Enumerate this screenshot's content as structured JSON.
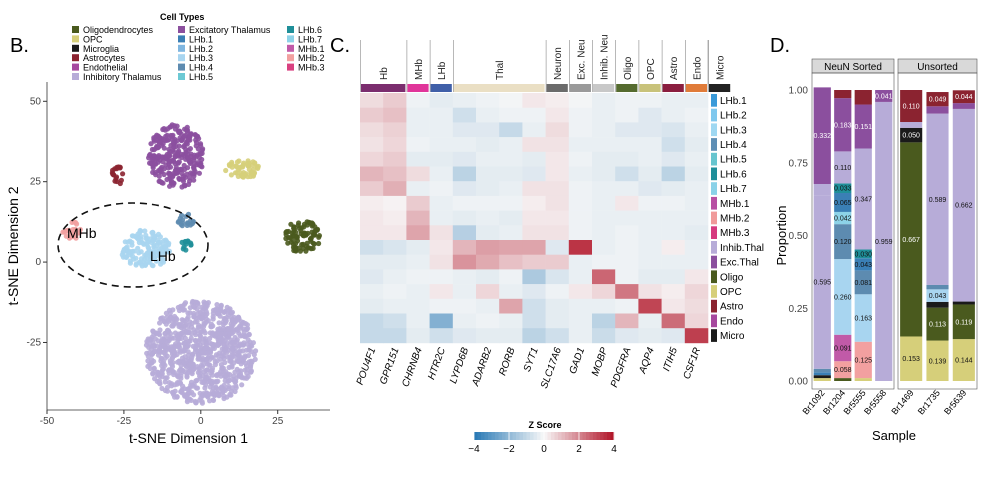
{
  "panels": {
    "B": {
      "label": "B.",
      "legend_title": "Cell Types",
      "legend": [
        {
          "name": "Oligodendrocytes",
          "color": "#4a5a1e"
        },
        {
          "name": "OPC",
          "color": "#d6cf7a"
        },
        {
          "name": "Microglia",
          "color": "#1a1a1a"
        },
        {
          "name": "Astrocytes",
          "color": "#8b2330"
        },
        {
          "name": "Endothelial",
          "color": "#a6489e"
        },
        {
          "name": "Inhibitory Thalamus",
          "color": "#b7acd8"
        },
        {
          "name": "Excitatory Thalamus",
          "color": "#8b4f9e"
        },
        {
          "name": "LHb.1",
          "color": "#3a7fb5"
        },
        {
          "name": "LHb.2",
          "color": "#7fb6e0"
        },
        {
          "name": "LHb.3",
          "color": "#a8d5f0"
        },
        {
          "name": "LHb.4",
          "color": "#5d8bb0"
        },
        {
          "name": "LHb.5",
          "color": "#6cc9d4"
        },
        {
          "name": "LHb.6",
          "color": "#1f8f99"
        },
        {
          "name": "LHb.7",
          "color": "#8dd3e8"
        },
        {
          "name": "MHb.1",
          "color": "#c15aa8"
        },
        {
          "name": "MHb.2",
          "color": "#f2a0a0"
        },
        {
          "name": "MHb.3",
          "color": "#d94080"
        }
      ],
      "annotations": [
        "MHb",
        "LHb"
      ]
    },
    "C": {
      "label": "C.",
      "colorbar_title": "Z Score",
      "colorbar_ticks": [
        "−4",
        "−2",
        "0",
        "2",
        "4"
      ]
    },
    "D": {
      "label": "D."
    }
  },
  "chart_data": [
    {
      "type": "scatter",
      "xlabel": "t-SNE Dimension 1",
      "ylabel": "t-SNE Dimension 2",
      "xlim": [
        -50,
        42
      ],
      "ylim": [
        -46,
        56
      ],
      "xticks": [
        -50,
        -25,
        0,
        25
      ],
      "yticks": [
        -25,
        0,
        25,
        50
      ],
      "clusters": [
        {
          "name": "Inhibitory Thalamus",
          "center": [
            0,
            -28
          ],
          "spread": [
            18,
            16
          ]
        },
        {
          "name": "Excitatory Thalamus",
          "center": [
            -8,
            33
          ],
          "spread": [
            9,
            10
          ]
        },
        {
          "name": "Oligodendrocytes",
          "center": [
            33,
            8
          ],
          "spread": [
            6,
            5
          ]
        },
        {
          "name": "OPC",
          "center": [
            14,
            29
          ],
          "spread": [
            6,
            3
          ]
        },
        {
          "name": "Astrocytes",
          "center": [
            -27,
            27
          ],
          "spread": [
            2,
            3
          ]
        },
        {
          "name": "LHb.3",
          "center": [
            -18,
            4
          ],
          "spread": [
            8,
            6
          ]
        },
        {
          "name": "LHb.4",
          "center": [
            -5,
            13
          ],
          "spread": [
            3,
            2
          ]
        },
        {
          "name": "LHb.6",
          "center": [
            -5,
            5
          ],
          "spread": [
            2,
            2
          ]
        },
        {
          "name": "MHb.2",
          "center": [
            -42,
            10
          ],
          "spread": [
            3,
            3
          ]
        }
      ]
    },
    {
      "type": "heatmap",
      "column_groups": [
        {
          "name": "Hb",
          "span": 2,
          "color": "#7b2d6e"
        },
        {
          "name": "MHb",
          "span": 1,
          "color": "#e0359a"
        },
        {
          "name": "LHb",
          "span": 1,
          "color": "#3f5fa8"
        },
        {
          "name": "Thal",
          "span": 4,
          "color": "#eadfc4"
        },
        {
          "name": "Neuron",
          "span": 1,
          "color": "#6b6b6b"
        },
        {
          "name": "Exc. Neu",
          "span": 1,
          "color": "#9a9a9a"
        },
        {
          "name": "Inhib. Neu",
          "span": 1,
          "color": "#c8c8c8"
        },
        {
          "name": "Oligo",
          "span": 1,
          "color": "#556b2f"
        },
        {
          "name": "OPC",
          "span": 1,
          "color": "#c8c27a"
        },
        {
          "name": "Astro",
          "span": 1,
          "color": "#8b1e3f"
        },
        {
          "name": "Endo",
          "span": 1,
          "color": "#e07b39"
        },
        {
          "name": "Micro",
          "span": 1,
          "color": "#222222"
        }
      ],
      "genes": [
        "POU4F1",
        "GPR151",
        "CHRNB4",
        "HTR2C",
        "LYPD6B",
        "ADARB2",
        "RORB",
        "SYT1",
        "SLC17A6",
        "GAD1",
        "MOBP",
        "PDGFRA",
        "AQP4",
        "ITIH5",
        "CSF1R"
      ],
      "rows": [
        {
          "name": "LHb.1",
          "color": "#3a9ad9"
        },
        {
          "name": "LHb.2",
          "color": "#7fc8ee"
        },
        {
          "name": "LHb.3",
          "color": "#9fd8f2"
        },
        {
          "name": "LHb.4",
          "color": "#5e8fb5"
        },
        {
          "name": "LHb.5",
          "color": "#67c5cf"
        },
        {
          "name": "LHb.6",
          "color": "#1f8f9a"
        },
        {
          "name": "LHb.7",
          "color": "#8ad2e8"
        },
        {
          "name": "MHb.1",
          "color": "#b84fa3"
        },
        {
          "name": "MHb.2",
          "color": "#f09a9a"
        },
        {
          "name": "MHb.3",
          "color": "#d63a7f"
        },
        {
          "name": "Inhib.Thal",
          "color": "#b7acd8"
        },
        {
          "name": "Exc.Thal",
          "color": "#8b4f9e"
        },
        {
          "name": "Oligo",
          "color": "#4a5a1e"
        },
        {
          "name": "OPC",
          "color": "#d6cf7a"
        },
        {
          "name": "Astro",
          "color": "#8b2330"
        },
        {
          "name": "Endo",
          "color": "#a6489e"
        },
        {
          "name": "Micro",
          "color": "#1a1a1a"
        }
      ],
      "values": [
        [
          0.5,
          0.8,
          -0.2,
          -0.4,
          -0.3,
          -0.2,
          -0.1,
          0.3,
          0.2,
          -0.1,
          -0.3,
          -0.2,
          -0.2,
          -0.3,
          -0.3
        ],
        [
          0.8,
          1.0,
          -0.3,
          -0.3,
          -0.8,
          -0.3,
          -0.2,
          -0.2,
          0.3,
          -0.2,
          -0.3,
          -0.2,
          -0.5,
          -0.3,
          -0.2
        ],
        [
          0.5,
          0.7,
          -0.3,
          -0.3,
          -0.5,
          -0.5,
          -1.0,
          -0.3,
          0.5,
          -0.2,
          -0.3,
          -0.5,
          -0.5,
          -0.6,
          -0.3
        ],
        [
          0.4,
          0.6,
          -0.2,
          -0.3,
          -0.3,
          -0.4,
          -0.3,
          0.4,
          0.4,
          -0.3,
          -0.3,
          -0.3,
          -0.3,
          -0.8,
          -0.4
        ],
        [
          0.6,
          0.8,
          -0.4,
          -0.4,
          -0.5,
          -0.3,
          -0.3,
          -0.4,
          0.3,
          -0.2,
          -0.4,
          -0.4,
          -0.3,
          -0.5,
          -0.3
        ],
        [
          1.2,
          1.0,
          0.5,
          -0.3,
          -1.2,
          -0.4,
          -0.4,
          -0.5,
          0.3,
          -0.3,
          -0.4,
          -0.8,
          -0.4,
          -1.2,
          -0.4
        ],
        [
          0.8,
          1.3,
          -0.3,
          -0.2,
          -0.5,
          -0.4,
          -0.3,
          0.4,
          0.4,
          -0.2,
          -0.3,
          -0.3,
          -0.5,
          -0.4,
          -0.3
        ],
        [
          0.2,
          0.1,
          0.8,
          -0.3,
          -0.2,
          -0.2,
          -0.2,
          0.2,
          0.4,
          -0.2,
          -0.3,
          0.3,
          -0.2,
          -0.2,
          -0.3
        ],
        [
          0.3,
          0.2,
          1.2,
          -0.3,
          -0.4,
          -0.3,
          -0.4,
          0.3,
          0.3,
          -0.2,
          -0.3,
          -0.3,
          -0.3,
          -0.3,
          -0.3
        ],
        [
          0.3,
          0.3,
          1.5,
          0.4,
          -1.3,
          -0.4,
          -0.3,
          0.4,
          0.4,
          -0.2,
          -0.3,
          -0.2,
          -0.3,
          -0.3,
          -0.4
        ],
        [
          -0.8,
          -0.6,
          -0.4,
          0.3,
          1.2,
          1.6,
          1.5,
          1.5,
          -0.5,
          3.5,
          -0.3,
          -0.2,
          -0.3,
          0.2,
          -0.3
        ],
        [
          -0.4,
          -0.4,
          -0.3,
          0.4,
          1.8,
          1.4,
          1.0,
          0.8,
          0.8,
          -0.3,
          -0.2,
          -0.2,
          -0.3,
          -0.3,
          -0.3
        ],
        [
          -0.5,
          -0.3,
          -0.2,
          -0.2,
          -0.3,
          -0.4,
          -0.2,
          -1.5,
          -0.6,
          -0.3,
          2.6,
          -0.2,
          -0.4,
          -0.4,
          0.3
        ],
        [
          -0.3,
          -0.2,
          -0.3,
          0.3,
          -0.3,
          0.6,
          -0.3,
          -0.5,
          -0.2,
          0.3,
          0.6,
          2.3,
          0.4,
          0.2,
          0.6
        ],
        [
          -0.4,
          -0.3,
          -0.3,
          -0.2,
          -0.2,
          -0.3,
          1.5,
          -0.8,
          -0.4,
          -0.3,
          -0.3,
          -0.2,
          3.2,
          0.3,
          0.5
        ],
        [
          -1.0,
          -0.8,
          -0.3,
          -2.3,
          -0.3,
          -0.2,
          -0.3,
          -0.8,
          -0.4,
          -0.3,
          -1.2,
          1.2,
          -0.3,
          2.5,
          0.6
        ],
        [
          -1.0,
          -1.0,
          -0.4,
          -0.8,
          -0.5,
          -0.4,
          -0.4,
          -1.2,
          -0.8,
          -0.3,
          -0.9,
          -0.5,
          -0.4,
          -0.5,
          3.3
        ]
      ],
      "colorbar_range": [
        -4,
        4
      ]
    },
    {
      "type": "bar",
      "stacked": true,
      "ylabel": "Proportion",
      "xlabel": "Sample",
      "ylim": [
        0,
        1.0
      ],
      "yticks": [
        "0.00",
        "0.25",
        "0.50",
        "0.75",
        "1.00"
      ],
      "facets": [
        {
          "name": "NeuN Sorted",
          "samples": [
            "Br1092",
            "Br1204",
            "Br5555",
            "Br5558"
          ],
          "stacks": [
            [
              {
                "value": 0.01,
                "color": "#d6cf7a"
              },
              {
                "value": 0.01,
                "color": "#1a1a1a"
              },
              {
                "value": 0.01,
                "color": "#3a7fb5"
              },
              {
                "value": 0.012,
                "color": "#5d8bb0"
              },
              {
                "value": 0.595,
                "color": "#b7acd8",
                "label": "0.595"
              },
              {
                "value": 0.04,
                "color": "#b7acd8"
              },
              {
                "value": 0.332,
                "color": "#8b4f9e",
                "label": "0.332"
              }
            ],
            [
              {
                "value": 0.01,
                "color": "#4a5a1e"
              },
              {
                "value": 0.058,
                "color": "#f2a0a0",
                "label": "0.058"
              },
              {
                "value": 0.091,
                "color": "#c15aa8",
                "label": "0.091"
              },
              {
                "value": 0.26,
                "color": "#a8d5f0",
                "label": "0.260"
              },
              {
                "value": 0.12,
                "color": "#5d8bb0",
                "label": "0.120"
              },
              {
                "value": 0.042,
                "color": "#8dd3e8",
                "label": "0.042"
              },
              {
                "value": 0.065,
                "color": "#3a7fb5",
                "label": "0.065"
              },
              {
                "value": 0.033,
                "color": "#1f8f99",
                "label": "0.033"
              },
              {
                "value": 0.11,
                "color": "#b7acd8",
                "label": "0.110"
              },
              {
                "value": 0.183,
                "color": "#8b4f9e",
                "label": "0.183"
              },
              {
                "value": 0.028,
                "color": "#8b2330"
              }
            ],
            [
              {
                "value": 0.01,
                "color": "#d6cf7a"
              },
              {
                "value": 0.125,
                "color": "#f2a0a0",
                "label": "0.125"
              },
              {
                "value": 0.163,
                "color": "#a8d5f0",
                "label": "0.163"
              },
              {
                "value": 0.081,
                "color": "#5d8bb0",
                "label": "0.081"
              },
              {
                "value": 0.043,
                "color": "#3a7fb5",
                "label": "0.043"
              },
              {
                "value": 0.03,
                "color": "#1f8f99",
                "label": "0.030"
              },
              {
                "value": 0.347,
                "color": "#b7acd8",
                "label": "0.347"
              },
              {
                "value": 0.151,
                "color": "#8b4f9e",
                "label": "0.151"
              },
              {
                "value": 0.05,
                "color": "#8b2330"
              }
            ],
            [
              {
                "value": 0.959,
                "color": "#b7acd8",
                "label": "0.959"
              },
              {
                "value": 0.041,
                "color": "#8b4f9e",
                "label": "0.041"
              }
            ]
          ]
        },
        {
          "name": "Unsorted",
          "samples": [
            "Br1469",
            "Br1735",
            "Br5639"
          ],
          "stacks": [
            [
              {
                "value": 0.153,
                "color": "#d6cf7a",
                "label": "0.153"
              },
              {
                "value": 0.667,
                "color": "#4a5a1e",
                "label": "0.667"
              },
              {
                "value": 0.05,
                "color": "#1a1a1a",
                "label": "0.050"
              },
              {
                "value": 0.02,
                "color": "#b7acd8"
              },
              {
                "value": 0.11,
                "color": "#8b2330",
                "label": "0.110"
              }
            ],
            [
              {
                "value": 0.139,
                "color": "#d6cf7a",
                "label": "0.139"
              },
              {
                "value": 0.113,
                "color": "#4a5a1e",
                "label": "0.113"
              },
              {
                "value": 0.02,
                "color": "#1a1a1a"
              },
              {
                "value": 0.043,
                "color": "#a8d5f0",
                "label": "0.043"
              },
              {
                "value": 0.015,
                "color": "#5d8bb0"
              },
              {
                "value": 0.589,
                "color": "#b7acd8",
                "label": "0.589"
              },
              {
                "value": 0.025,
                "color": "#8b4f9e"
              },
              {
                "value": 0.049,
                "color": "#8b2330",
                "label": "0.049"
              }
            ],
            [
              {
                "value": 0.144,
                "color": "#d6cf7a",
                "label": "0.144"
              },
              {
                "value": 0.119,
                "color": "#4a5a1e",
                "label": "0.119"
              },
              {
                "value": 0.01,
                "color": "#1a1a1a"
              },
              {
                "value": 0.662,
                "color": "#b7acd8",
                "label": "0.662"
              },
              {
                "value": 0.02,
                "color": "#8b4f9e"
              },
              {
                "value": 0.044,
                "color": "#8b2330",
                "label": "0.044"
              }
            ]
          ]
        }
      ]
    }
  ]
}
